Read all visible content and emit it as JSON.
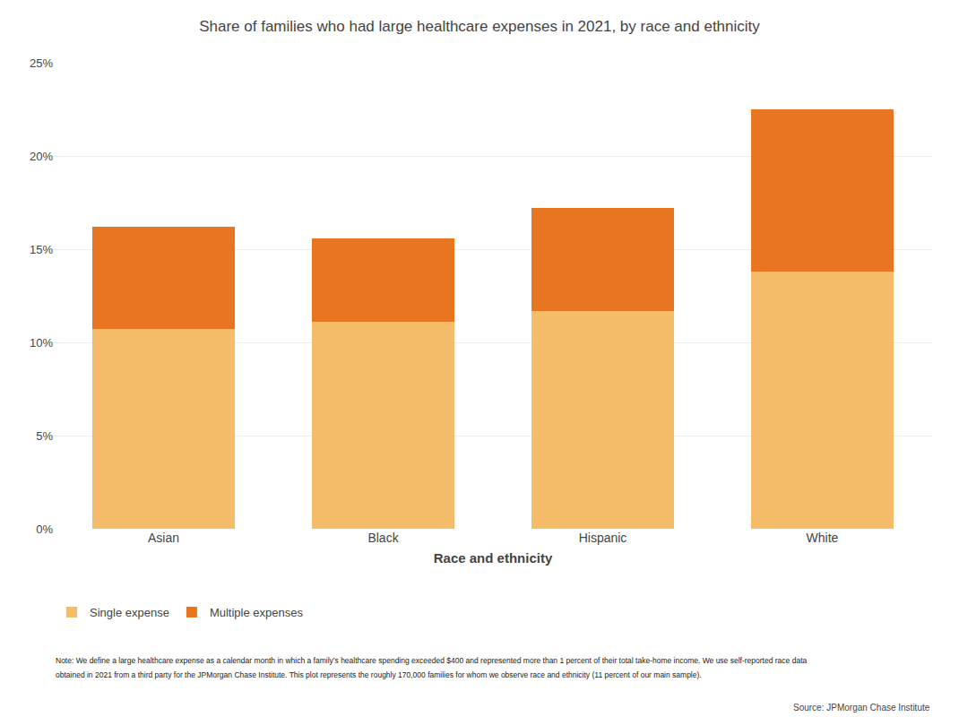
{
  "chart_data": {
    "type": "bar",
    "title": "Share of families who had large healthcare expenses in 2021, by race and ethnicity",
    "xlabel": "Race and ethnicity",
    "categories": [
      "Asian",
      "Black",
      "Hispanic",
      "White"
    ],
    "series": [
      {
        "name": "Single expense",
        "color": "#F5BC6A",
        "values": [
          10.7,
          11.1,
          11.7,
          13.8
        ]
      },
      {
        "name": "Multiple expenses",
        "color": "#E87520",
        "values": [
          5.5,
          4.5,
          5.5,
          8.7
        ]
      }
    ],
    "stacked": true,
    "ylim": [
      0,
      25
    ],
    "yticks": [
      {
        "value": 0,
        "label": "0%"
      },
      {
        "value": 5,
        "label": "5%"
      },
      {
        "value": 10,
        "label": "10%"
      },
      {
        "value": 15,
        "label": "15%"
      },
      {
        "value": 20,
        "label": "20%"
      },
      {
        "value": 25,
        "label": "25%"
      }
    ],
    "grid": true,
    "legend": "bottom",
    "annotations": [
      "Note: We define a large healthcare expense as a calendar month in which a family’s healthcare spending exceeded $400 and represented more than 1 percent of their total take-home income. We use self-reported race data",
      "obtained in 2021 from a third party for the JPMorgan Chase Institute. This plot represents the roughly 170,000 families for whom we observe race and ethnicity (11 percent of our main sample)."
    ],
    "source": "Source: JPMorgan Chase Institute"
  }
}
